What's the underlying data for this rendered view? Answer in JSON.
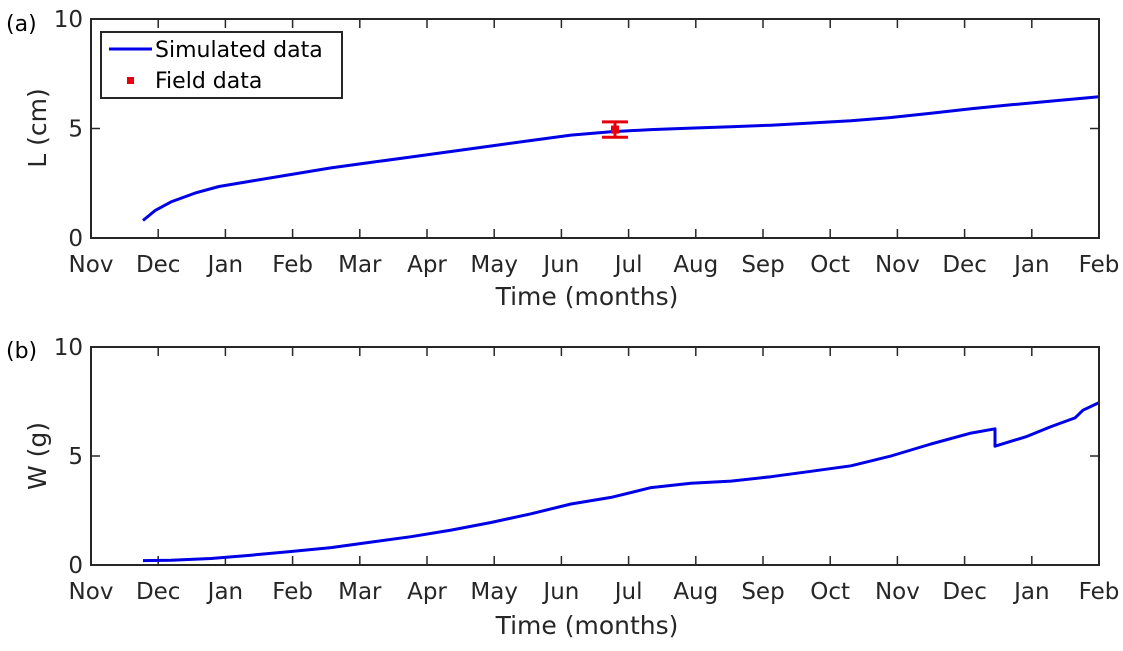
{
  "chart_data": [
    {
      "type": "line",
      "panel_label": "(a)",
      "xlabel": "Time (months)",
      "ylabel": "L (cm)",
      "ylim": [
        0,
        10
      ],
      "yticks": [
        0,
        5,
        10
      ],
      "xlim": [
        0,
        12.6
      ],
      "month_ticks": [
        "Nov",
        "Dec",
        "Jan",
        "Feb",
        "Mar",
        "Apr",
        "May",
        "Jun",
        "Jul",
        "Aug",
        "Sep",
        "Oct",
        "Nov",
        "Dec",
        "Jan",
        "Feb"
      ],
      "legend": {
        "position": "top-left",
        "entries": [
          "Simulated data",
          "Field data"
        ]
      },
      "series": [
        {
          "name": "Simulated data",
          "kind": "line",
          "color": "#0000e6",
          "x": [
            0.65,
            0.8,
            1.0,
            1.3,
            1.6,
            2.0,
            2.5,
            3.0,
            3.5,
            4.0,
            4.5,
            5.0,
            5.5,
            6.0,
            6.5,
            7.0,
            7.5,
            8.0,
            8.5,
            9.0,
            9.5,
            10.0,
            10.5,
            11.0,
            11.5,
            12.0,
            12.6
          ],
          "y": [
            0.8,
            1.25,
            1.65,
            2.05,
            2.35,
            2.6,
            2.9,
            3.2,
            3.45,
            3.7,
            3.95,
            4.2,
            4.45,
            4.7,
            4.85,
            4.95,
            5.02,
            5.08,
            5.15,
            5.25,
            5.35,
            5.5,
            5.7,
            5.9,
            6.08,
            6.25,
            6.45
          ]
        },
        {
          "name": "Field data",
          "kind": "errorbar",
          "color": "#e6000d",
          "x": [
            6.55
          ],
          "y": [
            4.95
          ],
          "err": [
            0.35
          ]
        }
      ]
    },
    {
      "type": "line",
      "panel_label": "(b)",
      "xlabel": "Time (months)",
      "ylabel": "W (g)",
      "ylim": [
        0,
        10
      ],
      "yticks": [
        0,
        5,
        10
      ],
      "xlim": [
        0,
        12.6
      ],
      "month_ticks": [
        "Nov",
        "Dec",
        "Jan",
        "Feb",
        "Mar",
        "Apr",
        "May",
        "Jun",
        "Jul",
        "Aug",
        "Sep",
        "Oct",
        "Nov",
        "Dec",
        "Jan",
        "Feb"
      ],
      "series": [
        {
          "kind": "line",
          "color": "#0000e6",
          "x": [
            0.65,
            1.0,
            1.5,
            2.0,
            2.5,
            3.0,
            3.5,
            4.0,
            4.5,
            5.0,
            5.5,
            6.0,
            6.5,
            7.0,
            7.5,
            8.0,
            8.5,
            9.0,
            9.5,
            10.0,
            10.5,
            11.0,
            11.3,
            11.3,
            11.7,
            12.0,
            12.3,
            12.4,
            12.6
          ],
          "y": [
            0.2,
            0.22,
            0.3,
            0.45,
            0.62,
            0.8,
            1.05,
            1.3,
            1.6,
            1.95,
            2.35,
            2.8,
            3.1,
            3.55,
            3.75,
            3.85,
            4.05,
            4.3,
            4.55,
            5.0,
            5.55,
            6.05,
            6.25,
            5.45,
            5.9,
            6.35,
            6.75,
            7.1,
            7.45
          ]
        }
      ]
    }
  ]
}
